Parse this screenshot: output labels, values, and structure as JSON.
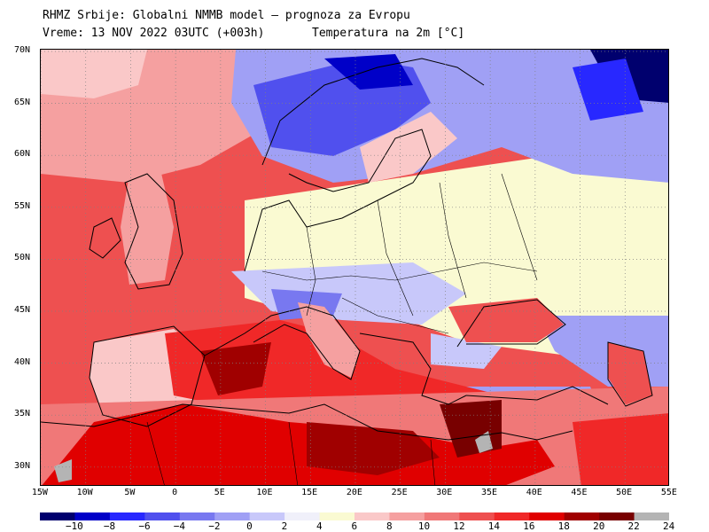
{
  "header": {
    "line1": "RHMZ Srbije: Globalni NMMB model — prognoza za Evropu",
    "line2": "Vreme: 13 NOV 2022 03UTC (+003h)",
    "line3": "Temperatura na 2m [°C]"
  },
  "lat_labels": [
    "70N",
    "65N",
    "60N",
    "55N",
    "50N",
    "45N",
    "40N",
    "35N",
    "30N"
  ],
  "lon_labels": [
    "15W",
    "10W",
    "5W",
    "0",
    "5E",
    "10E",
    "15E",
    "20E",
    "25E",
    "30E",
    "35E",
    "40E",
    "45E",
    "50E",
    "55E"
  ],
  "legend": {
    "colors": [
      "#00006e",
      "#0000c8",
      "#2828ff",
      "#5050ee",
      "#7878f0",
      "#a0a0f5",
      "#c8c8fa",
      "#f0f0fa",
      "#fafad2",
      "#fac8c8",
      "#f5a0a0",
      "#f07878",
      "#ee5050",
      "#f02828",
      "#e00000",
      "#a00000",
      "#780000",
      "#b4b4b4"
    ],
    "labels": [
      "−10",
      "−8",
      "−6",
      "−4",
      "−2",
      "0",
      "2",
      "4",
      "6",
      "8",
      "10",
      "12",
      "14",
      "16",
      "18",
      "20",
      "22",
      "24"
    ]
  },
  "map_colors": {
    "sea_warm": "#f07878",
    "sea_hot": "#e00000",
    "land_mild": "#fafad2",
    "land_cool": "#c8c8fa",
    "cold": "#5050ee",
    "very_cold": "#0000c8",
    "extreme_cold": "#00006e",
    "desert_hot": "#a00000",
    "desert_extreme": "#780000",
    "grey": "#b4b4b4",
    "warm_land": "#f5a0a0",
    "pink": "#fac8c8"
  }
}
